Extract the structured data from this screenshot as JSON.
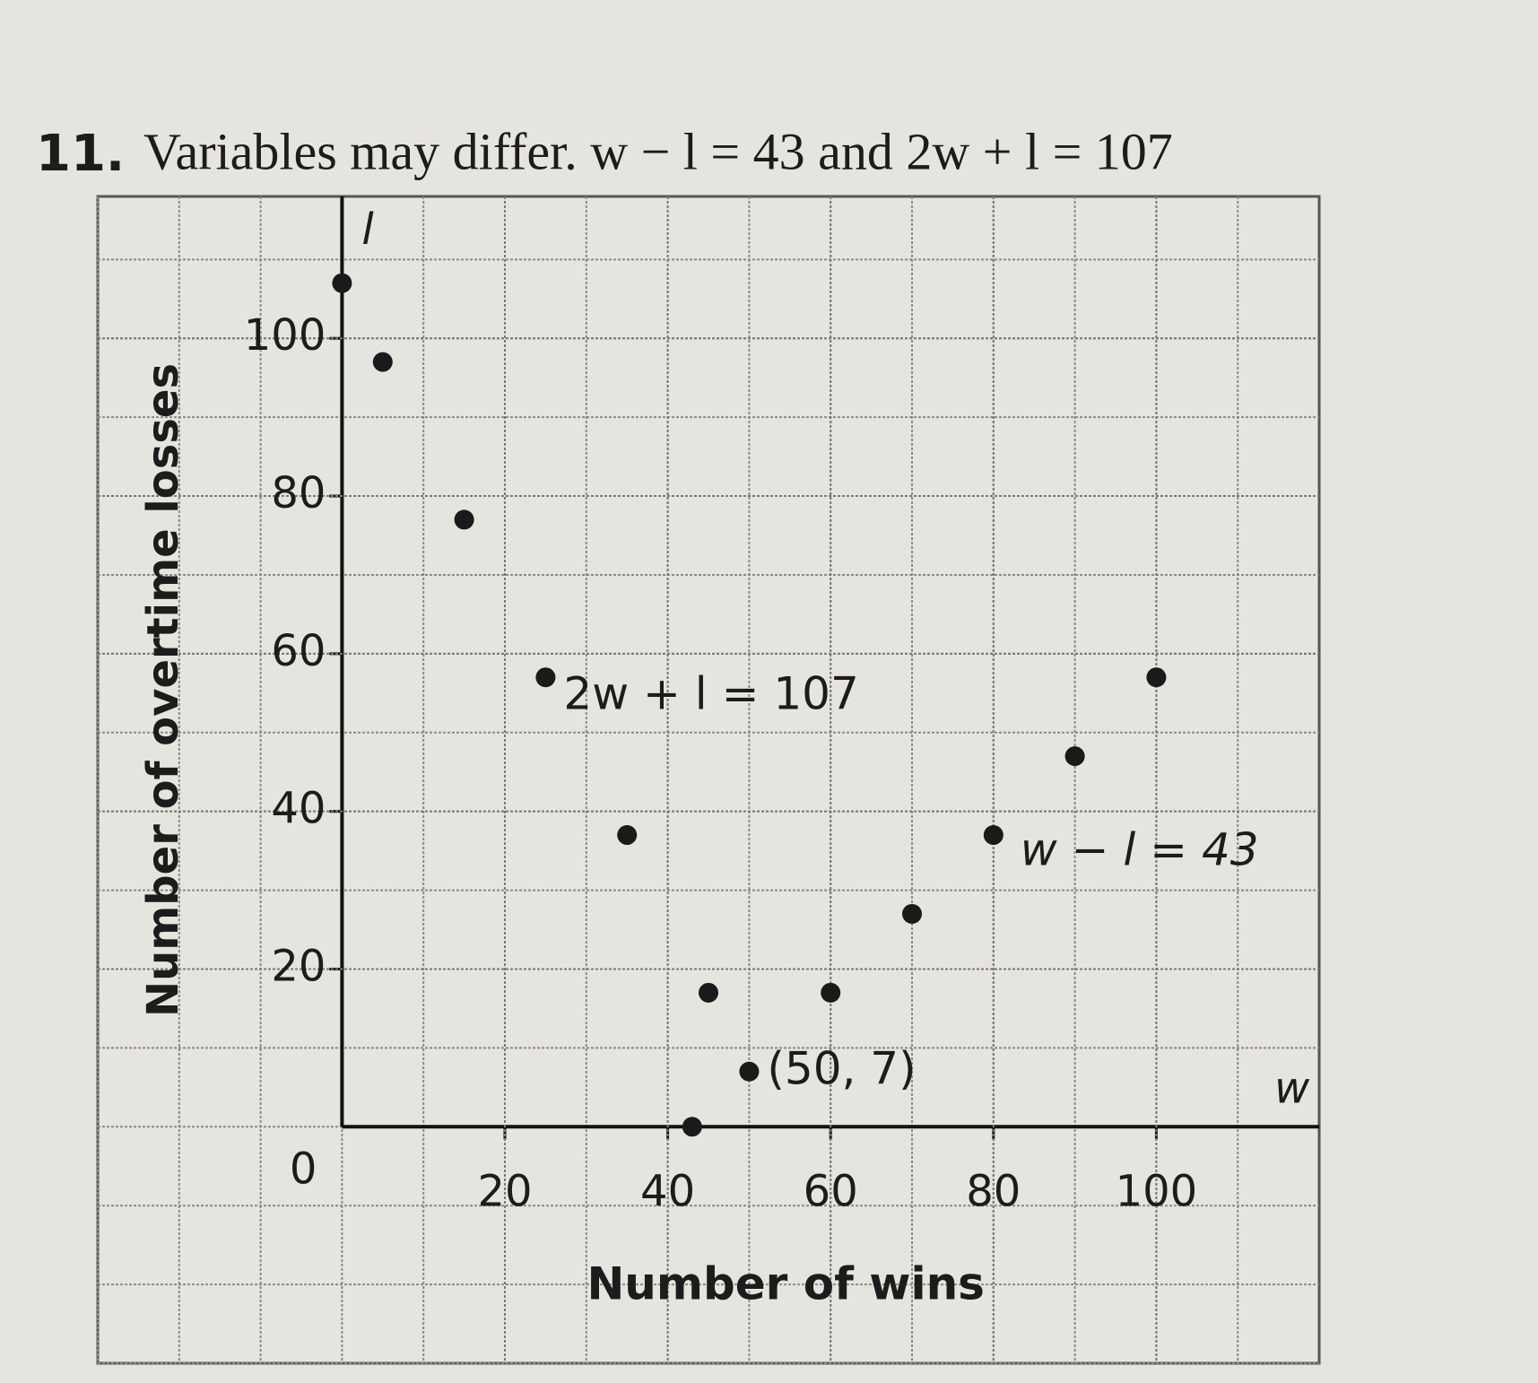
{
  "chart_data": {
    "type": "scatter",
    "number": "11.",
    "title": "Variables may differ. w − l = 43 and 2w + l = 107",
    "x_label": "Number of wins",
    "y_label": "Number of overtime losses",
    "x_axis_letter": "w",
    "y_axis_letter": "l",
    "origin_label": "0",
    "xlim": [
      -30,
      120
    ],
    "ylim": [
      -30,
      118
    ],
    "xticks": [
      20,
      40,
      60,
      80,
      100
    ],
    "yticks": [
      20,
      40,
      60,
      80,
      100
    ],
    "grid": true,
    "series": [
      {
        "name": "2w + l = 107",
        "color": "#1a1a1a",
        "x": [
          0,
          5,
          15,
          25,
          35,
          45
        ],
        "values": [
          107,
          97,
          77,
          57,
          37,
          17
        ]
      },
      {
        "name": "w − l = 43",
        "color": "#1a1a1a",
        "x": [
          43,
          50,
          60,
          70,
          80,
          90,
          100
        ],
        "values": [
          0,
          7,
          17,
          27,
          37,
          47,
          57
        ]
      }
    ],
    "annotation": "(50, 7)"
  }
}
